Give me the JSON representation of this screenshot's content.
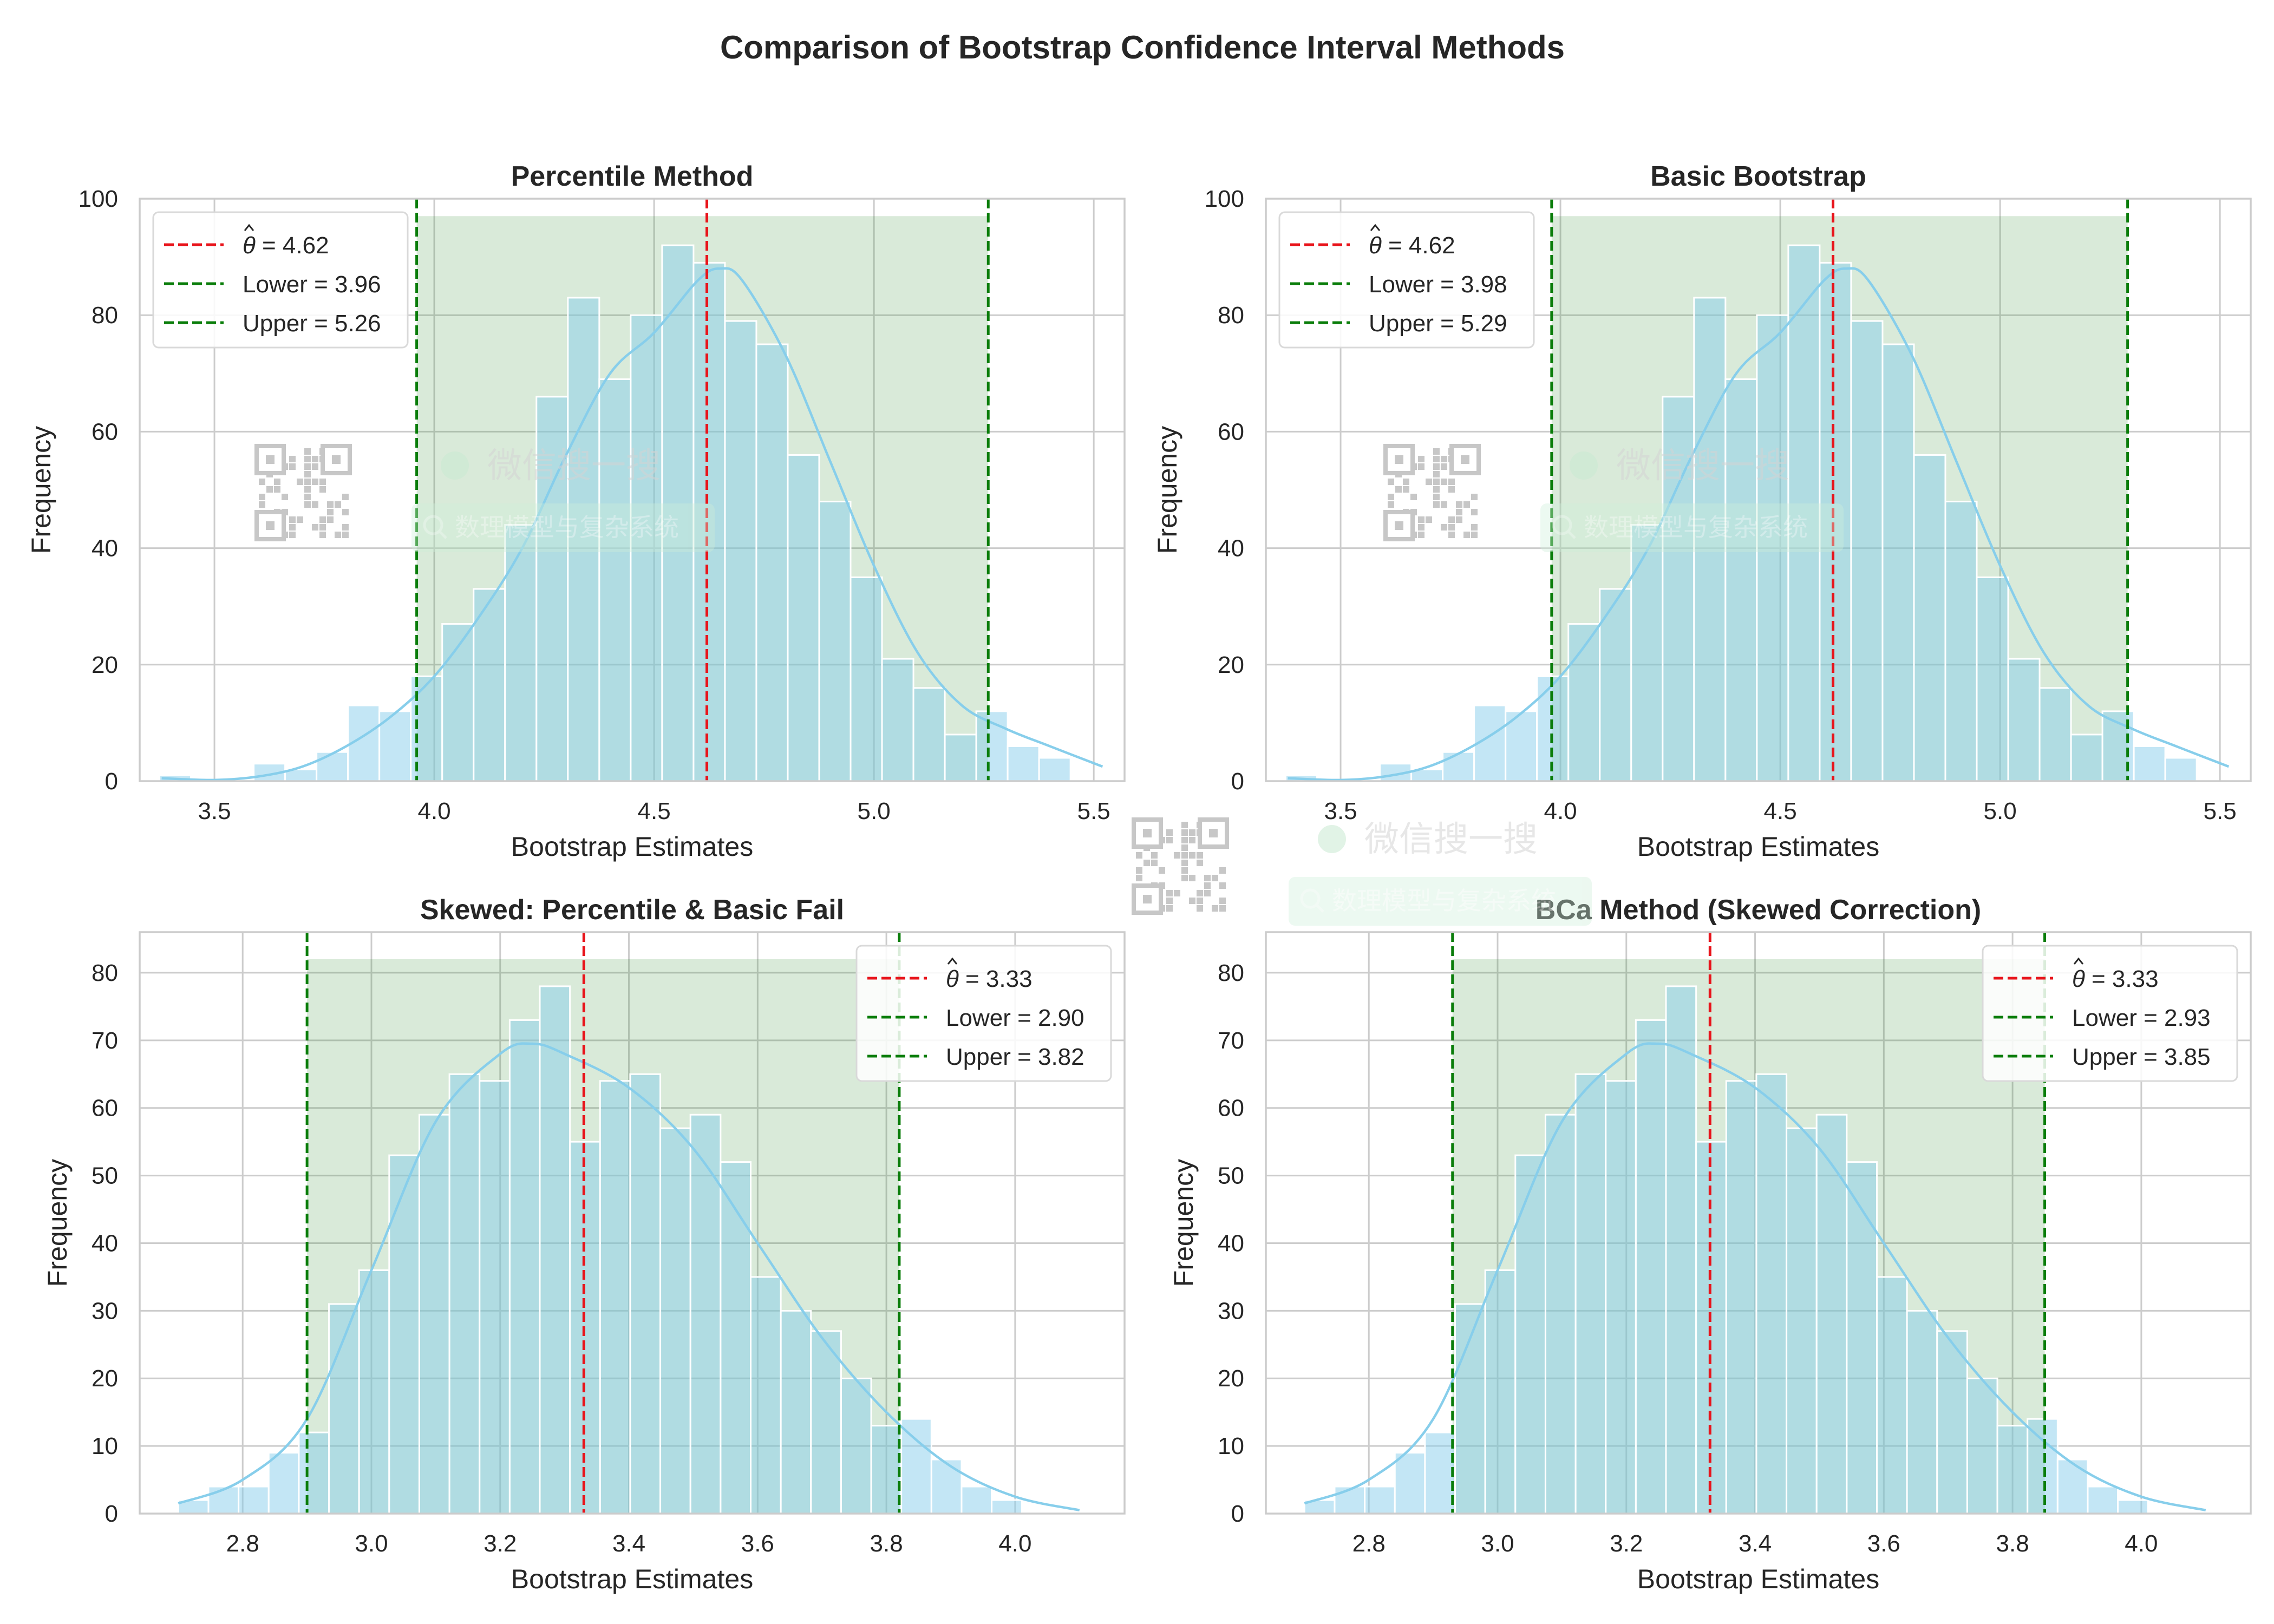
{
  "figure": {
    "title": "Comparison of Bootstrap Confidence Interval Methods"
  },
  "colors": {
    "hist_fill": "#87ceeb",
    "hist_edge": "#ffffff",
    "kde": "#87ceeb",
    "ci_fill": "#2e8b2e",
    "estimate_line": "#e8141b",
    "bound_line": "#0a7d0a",
    "grid": "#cccccc",
    "axes_edge": "#cccccc"
  },
  "watermark": {
    "label": "微信搜一搜",
    "search_text": "数理模型与复杂系统",
    "qr_icon": "qr-code-icon",
    "search_icon": "search-icon"
  },
  "chart_data": [
    {
      "type": "bar",
      "title": "Percentile Method",
      "xlabel": "Bootstrap Estimates",
      "ylabel": "Frequency",
      "xlim": [
        3.33,
        5.57
      ],
      "ylim": [
        0,
        100
      ],
      "xticks": [
        3.5,
        4.0,
        4.5,
        5.0,
        5.5
      ],
      "xtick_labels": [
        "3.5",
        "4.0",
        "4.5",
        "5.0",
        "5.5"
      ],
      "yticks": [
        0,
        20,
        40,
        60,
        80,
        100
      ],
      "ytick_labels": [
        "0",
        "20",
        "40",
        "60",
        "80",
        "100"
      ],
      "bin_start": 3.375,
      "bin_width": 0.07145,
      "counts": [
        1,
        0,
        0,
        3,
        2,
        5,
        13,
        12,
        18,
        27,
        33,
        44,
        66,
        83,
        69,
        80,
        92,
        89,
        79,
        75,
        56,
        48,
        35,
        21,
        16,
        8,
        12,
        6,
        4
      ],
      "kde_x": [
        3.38,
        3.5,
        3.6,
        3.7,
        3.8,
        3.9,
        4.0,
        4.1,
        4.2,
        4.3,
        4.4,
        4.5,
        4.6,
        4.65,
        4.7,
        4.8,
        4.9,
        5.0,
        5.1,
        5.2,
        5.3,
        5.4,
        5.52
      ],
      "kde_y": [
        0.5,
        0.2,
        0.8,
        2.5,
        6,
        11,
        18,
        28,
        40,
        56,
        70,
        77,
        86,
        88,
        86,
        73,
        55,
        37,
        22,
        13,
        9,
        6,
        2.5
      ],
      "ci_lower": 3.96,
      "ci_upper": 5.26,
      "ci_top": 97,
      "estimate": 4.62,
      "legend": {
        "placement": "upper-left",
        "entries": [
          "= 4.62",
          "Lower = 3.96",
          "Upper = 5.26"
        ]
      }
    },
    {
      "type": "bar",
      "title": "Basic Bootstrap",
      "xlabel": "Bootstrap Estimates",
      "ylabel": "Frequency",
      "xlim": [
        3.33,
        5.57
      ],
      "ylim": [
        0,
        100
      ],
      "xticks": [
        3.5,
        4.0,
        4.5,
        5.0,
        5.5
      ],
      "xtick_labels": [
        "3.5",
        "4.0",
        "4.5",
        "5.0",
        "5.5"
      ],
      "yticks": [
        0,
        20,
        40,
        60,
        80,
        100
      ],
      "ytick_labels": [
        "0",
        "20",
        "40",
        "60",
        "80",
        "100"
      ],
      "bin_start": 3.375,
      "bin_width": 0.07145,
      "counts": [
        1,
        0,
        0,
        3,
        2,
        5,
        13,
        12,
        18,
        27,
        33,
        44,
        66,
        83,
        69,
        80,
        92,
        89,
        79,
        75,
        56,
        48,
        35,
        21,
        16,
        8,
        12,
        6,
        4
      ],
      "kde_x": [
        3.38,
        3.5,
        3.6,
        3.7,
        3.8,
        3.9,
        4.0,
        4.1,
        4.2,
        4.3,
        4.4,
        4.5,
        4.6,
        4.65,
        4.7,
        4.8,
        4.9,
        5.0,
        5.1,
        5.2,
        5.3,
        5.4,
        5.52
      ],
      "kde_y": [
        0.5,
        0.2,
        0.8,
        2.5,
        6,
        11,
        18,
        28,
        40,
        56,
        70,
        77,
        86,
        88,
        86,
        73,
        55,
        37,
        22,
        13,
        9,
        6,
        2.5
      ],
      "ci_lower": 3.98,
      "ci_upper": 5.29,
      "ci_top": 97,
      "estimate": 4.62,
      "legend": {
        "placement": "upper-left",
        "entries": [
          "= 4.62",
          "Lower = 3.98",
          "Upper = 5.29"
        ]
      }
    },
    {
      "type": "bar",
      "title": "Skewed: Percentile & Basic Fail",
      "xlabel": "Bootstrap Estimates",
      "ylabel": "Frequency",
      "xlim": [
        2.64,
        4.17
      ],
      "ylim": [
        0,
        86
      ],
      "xticks": [
        2.8,
        3.0,
        3.2,
        3.4,
        3.6,
        3.8,
        4.0
      ],
      "xtick_labels": [
        "2.8",
        "3.0",
        "3.2",
        "3.4",
        "3.6",
        "3.8",
        "4.0"
      ],
      "yticks": [
        0,
        10,
        20,
        30,
        40,
        50,
        60,
        70,
        80
      ],
      "ytick_labels": [
        "0",
        "10",
        "20",
        "30",
        "40",
        "50",
        "60",
        "70",
        "80"
      ],
      "bin_start": 2.7,
      "bin_width": 0.0468,
      "counts": [
        2,
        4,
        4,
        9,
        12,
        31,
        36,
        53,
        59,
        65,
        64,
        73,
        78,
        55,
        64,
        65,
        57,
        59,
        52,
        35,
        30,
        27,
        20,
        13,
        14,
        8,
        4,
        2
      ],
      "kde_x": [
        2.7,
        2.8,
        2.9,
        3.0,
        3.1,
        3.2,
        3.25,
        3.3,
        3.4,
        3.5,
        3.6,
        3.7,
        3.8,
        3.9,
        4.0,
        4.1
      ],
      "kde_y": [
        1.5,
        5,
        14,
        36,
        58,
        68,
        69.5,
        68,
        63,
        54,
        40,
        26,
        15,
        7,
        2.5,
        0.5
      ],
      "ci_lower": 2.9,
      "ci_upper": 3.82,
      "ci_top": 82,
      "estimate": 3.33,
      "legend": {
        "placement": "upper-right",
        "entries": [
          "= 3.33",
          "Lower = 2.90",
          "Upper = 3.82"
        ]
      }
    },
    {
      "type": "bar",
      "title": "BCa Method (Skewed Correction)",
      "xlabel": "Bootstrap Estimates",
      "ylabel": "Frequency",
      "xlim": [
        2.64,
        4.17
      ],
      "ylim": [
        0,
        86
      ],
      "xticks": [
        2.8,
        3.0,
        3.2,
        3.4,
        3.6,
        3.8,
        4.0
      ],
      "xtick_labels": [
        "2.8",
        "3.0",
        "3.2",
        "3.4",
        "3.6",
        "3.8",
        "4.0"
      ],
      "yticks": [
        0,
        10,
        20,
        30,
        40,
        50,
        60,
        70,
        80
      ],
      "ytick_labels": [
        "0",
        "10",
        "20",
        "30",
        "40",
        "50",
        "60",
        "70",
        "80"
      ],
      "bin_start": 2.7,
      "bin_width": 0.0468,
      "counts": [
        2,
        4,
        4,
        9,
        12,
        31,
        36,
        53,
        59,
        65,
        64,
        73,
        78,
        55,
        64,
        65,
        57,
        59,
        52,
        35,
        30,
        27,
        20,
        13,
        14,
        8,
        4,
        2
      ],
      "kde_x": [
        2.7,
        2.8,
        2.9,
        3.0,
        3.1,
        3.2,
        3.25,
        3.3,
        3.4,
        3.5,
        3.6,
        3.7,
        3.8,
        3.9,
        4.0,
        4.1
      ],
      "kde_y": [
        1.5,
        5,
        14,
        36,
        58,
        68,
        69.5,
        68,
        63,
        54,
        40,
        26,
        15,
        7,
        2.5,
        0.5
      ],
      "ci_lower": 2.93,
      "ci_upper": 3.85,
      "ci_top": 82,
      "estimate": 3.33,
      "legend": {
        "placement": "upper-right",
        "entries": [
          "= 3.33",
          "Lower = 2.93",
          "Upper = 3.85"
        ]
      }
    }
  ]
}
